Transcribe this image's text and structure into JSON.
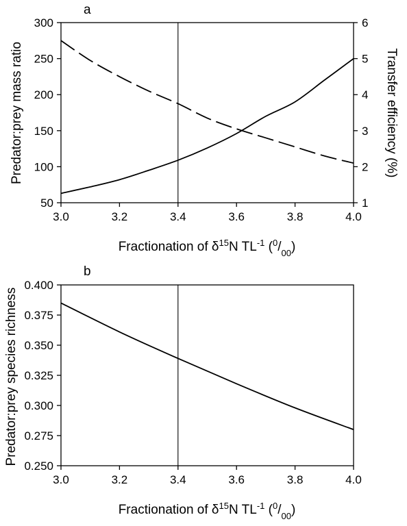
{
  "chart_data": [
    {
      "panel": "a",
      "type": "line",
      "xlabel": "Fractionation of δ15N TL-1 (0/00)",
      "ylabel": "Predator:prey mass ratio",
      "y2label": "Transfer efficiency (%)",
      "xlim": [
        3.0,
        4.0
      ],
      "ylim": [
        50,
        300
      ],
      "y2lim": [
        1,
        6
      ],
      "xticks": [
        "3.0",
        "3.2",
        "3.4",
        "3.6",
        "3.8",
        "4.0"
      ],
      "yticks": [
        "50",
        "100",
        "150",
        "200",
        "250",
        "300"
      ],
      "y2ticks": [
        "1",
        "2",
        "3",
        "4",
        "5",
        "6"
      ],
      "vline_x": 3.4,
      "series": [
        {
          "axis": "left",
          "style": "solid",
          "x": [
            3.0,
            3.1,
            3.2,
            3.3,
            3.4,
            3.5,
            3.6,
            3.7,
            3.8,
            3.9,
            4.0
          ],
          "values": [
            63,
            72,
            82,
            95,
            109,
            126,
            146,
            170,
            190,
            220,
            250
          ]
        },
        {
          "axis": "right",
          "style": "dashed",
          "x": [
            3.0,
            3.1,
            3.2,
            3.3,
            3.4,
            3.5,
            3.6,
            3.7,
            3.8,
            3.9,
            4.0
          ],
          "values": [
            5.5,
            4.95,
            4.5,
            4.1,
            3.75,
            3.35,
            3.05,
            2.8,
            2.55,
            2.3,
            2.1
          ]
        }
      ]
    },
    {
      "panel": "b",
      "type": "line",
      "xlabel": "Fractionation of δ15N TL-1 (0/00)",
      "ylabel": "Predator:prey species richness",
      "xlim": [
        3.0,
        4.0
      ],
      "ylim": [
        0.25,
        0.4
      ],
      "xticks": [
        "3.0",
        "3.2",
        "3.4",
        "3.6",
        "3.8",
        "4.0"
      ],
      "yticks": [
        "0.250",
        "0.275",
        "0.300",
        "0.325",
        "0.350",
        "0.375",
        "0.400"
      ],
      "vline_x": 3.4,
      "series": [
        {
          "axis": "left",
          "style": "solid",
          "x": [
            3.0,
            3.2,
            3.4,
            3.6,
            3.8,
            4.0
          ],
          "values": [
            0.385,
            0.361,
            0.339,
            0.318,
            0.298,
            0.28
          ]
        }
      ]
    }
  ]
}
